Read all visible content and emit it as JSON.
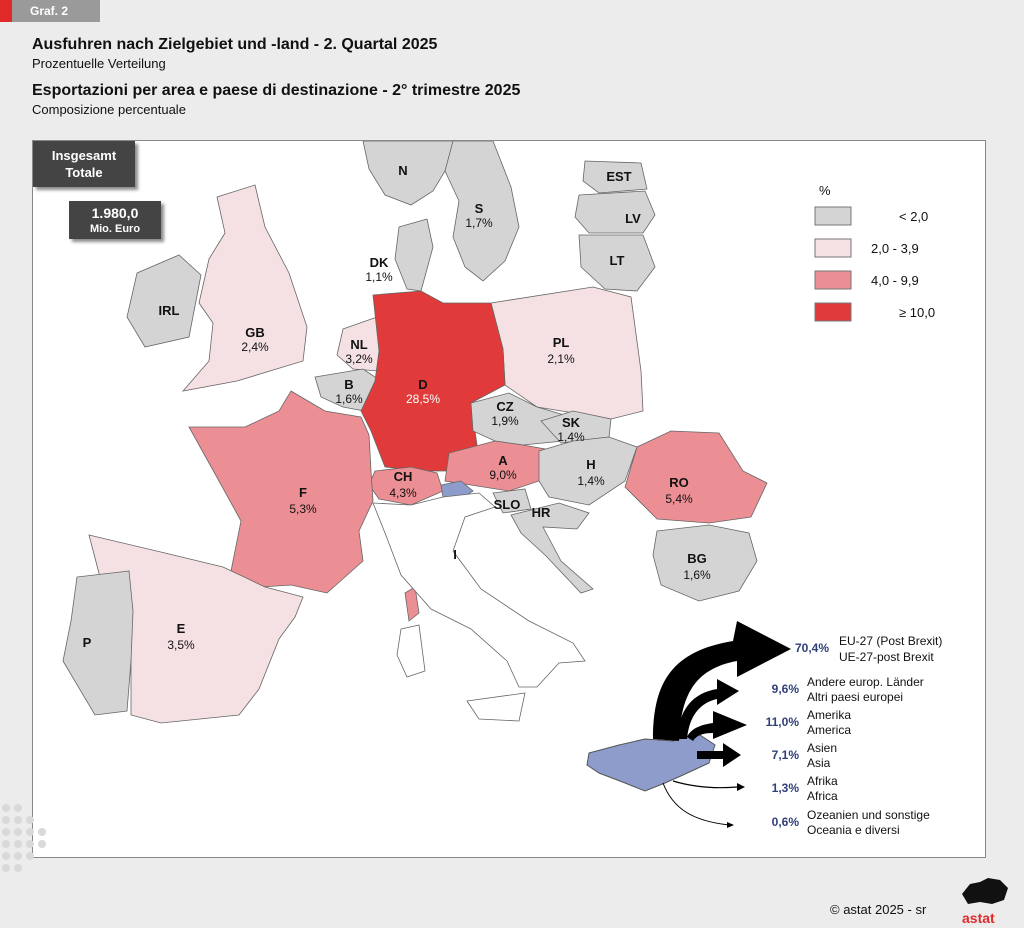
{
  "tag": "Graf. 2",
  "title_de": "Ausfuhren nach Zielgebiet und -land - 2. Quartal 2025",
  "subtitle_de": "Prozentuelle Verteilung",
  "title_it": "Esportazioni per area e paese di destinazione - 2° trimestre 2025",
  "subtitle_it": "Composizione percentuale",
  "total": {
    "label_de": "Insgesamt",
    "label_it": "Totale",
    "value": "1.980,0",
    "unit": "Mio. Euro"
  },
  "legend": {
    "title": "%",
    "items": [
      {
        "label": "<   2,0",
        "color": "#d4d4d4"
      },
      {
        "label": "2,0   -   3,9",
        "color": "#f5e1e3"
      },
      {
        "label": "4,0   -   9,9",
        "color": "#ec8f94"
      },
      {
        "label": "≥  10,0",
        "color": "#e03a3a"
      }
    ]
  },
  "countries": [
    {
      "code": "N",
      "value": "",
      "color": "#d4d4d4"
    },
    {
      "code": "S",
      "value": "1,7%",
      "color": "#d4d4d4"
    },
    {
      "code": "EST",
      "value": "",
      "color": "#d4d4d4"
    },
    {
      "code": "LV",
      "value": "",
      "color": "#d4d4d4"
    },
    {
      "code": "LT",
      "value": "",
      "color": "#d4d4d4"
    },
    {
      "code": "DK",
      "value": "1,1%",
      "color": "#d4d4d4"
    },
    {
      "code": "IRL",
      "value": "",
      "color": "#d4d4d4"
    },
    {
      "code": "GB",
      "value": "2,4%",
      "color": "#f5e1e3"
    },
    {
      "code": "NL",
      "value": "3,2%",
      "color": "#f5e1e3"
    },
    {
      "code": "B",
      "value": "1,6%",
      "color": "#d4d4d4"
    },
    {
      "code": "D",
      "value": "28,5%",
      "color": "#e03a3a"
    },
    {
      "code": "PL",
      "value": "2,1%",
      "color": "#f5e1e3"
    },
    {
      "code": "CZ",
      "value": "1,9%",
      "color": "#d4d4d4"
    },
    {
      "code": "SK",
      "value": "1,4%",
      "color": "#d4d4d4"
    },
    {
      "code": "A",
      "value": "9,0%",
      "color": "#ec8f94"
    },
    {
      "code": "H",
      "value": "1,4%",
      "color": "#d4d4d4"
    },
    {
      "code": "RO",
      "value": "5,4%",
      "color": "#ec8f94"
    },
    {
      "code": "CH",
      "value": "4,3%",
      "color": "#ec8f94"
    },
    {
      "code": "F",
      "value": "5,3%",
      "color": "#ec8f94"
    },
    {
      "code": "SLO",
      "value": "",
      "color": "#d4d4d4"
    },
    {
      "code": "HR",
      "value": "",
      "color": "#d4d4d4"
    },
    {
      "code": "BG",
      "value": "1,6%",
      "color": "#d4d4d4"
    },
    {
      "code": "I",
      "value": "",
      "color": "#ffffff"
    },
    {
      "code": "E",
      "value": "3,5%",
      "color": "#f5e1e3"
    },
    {
      "code": "P",
      "value": "",
      "color": "#d4d4d4"
    }
  ],
  "destinations": [
    {
      "value": "70,4%",
      "label_de": "EU-27 (Post Brexit)",
      "label_it": "UE-27-post Brexit"
    },
    {
      "value": "9,6%",
      "label_de": "Andere europ. Länder",
      "label_it": "Altri paesi europei"
    },
    {
      "value": "11,0%",
      "label_de": "Amerika",
      "label_it": "America"
    },
    {
      "value": "7,1%",
      "label_de": "Asien",
      "label_it": "Asia"
    },
    {
      "value": "1,3%",
      "label_de": "Afrika",
      "label_it": "Africa"
    },
    {
      "value": "0,6%",
      "label_de": "Ozeanien und sonstige",
      "label_it": "Oceania e diversi"
    }
  ],
  "copyright": "©  astat 2025 - sr",
  "logo": "astat",
  "colors": {
    "value_text": "#2f3f7a",
    "south_tyrol": "#8e9ccc",
    "accent": "#e02a2a"
  }
}
